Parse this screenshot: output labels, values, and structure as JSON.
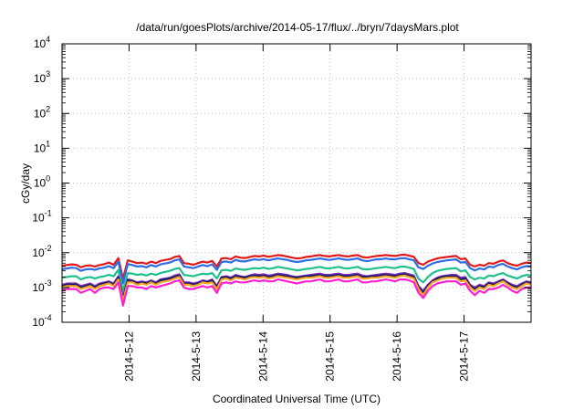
{
  "chart_data": {
    "type": "line",
    "title": "/data/run/goesPlots/archive/2014-05-17/flux/../bryn/7daysMars.plot",
    "xlabel": "Coordinated Universal Time (UTC)",
    "ylabel": "cGy/day",
    "yscale": "log",
    "ylim": [
      0.0001,
      10000
    ],
    "y_ticks": [
      {
        "base": "10",
        "exp": "-4"
      },
      {
        "base": "10",
        "exp": "-3"
      },
      {
        "base": "10",
        "exp": "-2"
      },
      {
        "base": "10",
        "exp": "-1"
      },
      {
        "base": "10",
        "exp": "0"
      },
      {
        "base": "10",
        "exp": "1"
      },
      {
        "base": "10",
        "exp": "2"
      },
      {
        "base": "10",
        "exp": "3"
      },
      {
        "base": "10",
        "exp": "4"
      }
    ],
    "x_tick_labels": [
      "2014-5-12",
      "2014-5-13",
      "2014-5-14",
      "2014-5-15",
      "2014-5-16",
      "2014-5-17"
    ],
    "xlim": [
      "2014-05-11 00:00",
      "2014-05-17 23:59"
    ],
    "grid": true,
    "legend": "none",
    "series": [
      {
        "color": "#e31a1c",
        "values": [
          0.0042,
          0.0044,
          0.0046,
          0.0045,
          0.0038,
          0.0042,
          0.0043,
          0.004,
          0.0044,
          0.0047,
          0.0052,
          0.0045,
          0.007,
          0.0018,
          0.006,
          0.0055,
          0.005,
          0.0052,
          0.0048,
          0.0055,
          0.005,
          0.0058,
          0.0062,
          0.0065,
          0.0075,
          0.008,
          0.005,
          0.0048,
          0.0045,
          0.005,
          0.0055,
          0.0052,
          0.0058,
          0.004,
          0.0068,
          0.007,
          0.0065,
          0.0078,
          0.0072,
          0.007,
          0.0075,
          0.008,
          0.0078,
          0.0082,
          0.0076,
          0.008,
          0.0085,
          0.0082,
          0.0078,
          0.0072,
          0.0068,
          0.007,
          0.0075,
          0.0078,
          0.0082,
          0.0085,
          0.008,
          0.0078,
          0.0082,
          0.0085,
          0.008,
          0.0078,
          0.0082,
          0.0085,
          0.0075,
          0.0072,
          0.0076,
          0.008,
          0.0082,
          0.0085,
          0.0082,
          0.008,
          0.0085,
          0.0088,
          0.0082,
          0.0076,
          0.005,
          0.0045,
          0.0055,
          0.0062,
          0.0068,
          0.0072,
          0.0075,
          0.0078,
          0.008,
          0.0065,
          0.0068,
          0.0045,
          0.004,
          0.0045,
          0.0042,
          0.005,
          0.0048,
          0.0055,
          0.006,
          0.005,
          0.0045,
          0.0042,
          0.0048,
          0.0052,
          0.005
        ]
      },
      {
        "color": "#2e6be6",
        "values": [
          0.0033,
          0.0035,
          0.0037,
          0.0036,
          0.003,
          0.0033,
          0.0034,
          0.0032,
          0.0035,
          0.0037,
          0.0041,
          0.0036,
          0.0055,
          0.0013,
          0.0047,
          0.0044,
          0.004,
          0.0041,
          0.0038,
          0.0044,
          0.004,
          0.0046,
          0.0049,
          0.0052,
          0.006,
          0.0064,
          0.004,
          0.0038,
          0.0036,
          0.004,
          0.0044,
          0.0041,
          0.0046,
          0.0032,
          0.0054,
          0.0056,
          0.0052,
          0.0062,
          0.0057,
          0.0056,
          0.006,
          0.0064,
          0.0062,
          0.0065,
          0.006,
          0.0064,
          0.0068,
          0.0065,
          0.0062,
          0.0057,
          0.0054,
          0.0056,
          0.006,
          0.0062,
          0.0065,
          0.0068,
          0.0064,
          0.0062,
          0.0065,
          0.0068,
          0.0064,
          0.0062,
          0.0065,
          0.0068,
          0.006,
          0.0057,
          0.006,
          0.0064,
          0.0065,
          0.0068,
          0.0065,
          0.0064,
          0.0068,
          0.007,
          0.0065,
          0.006,
          0.0038,
          0.0034,
          0.0042,
          0.0049,
          0.0054,
          0.0057,
          0.006,
          0.0062,
          0.0064,
          0.0052,
          0.0054,
          0.0036,
          0.0031,
          0.0035,
          0.0033,
          0.004,
          0.0038,
          0.0044,
          0.0048,
          0.004,
          0.0036,
          0.0033,
          0.0038,
          0.0041,
          0.004
        ]
      },
      {
        "color": "#1fbf8f",
        "values": [
          0.0019,
          0.002,
          0.0021,
          0.0021,
          0.0017,
          0.0019,
          0.002,
          0.0018,
          0.002,
          0.0021,
          0.0023,
          0.0021,
          0.0032,
          0.0008,
          0.0026,
          0.0025,
          0.0023,
          0.0024,
          0.0022,
          0.0025,
          0.0023,
          0.0026,
          0.0028,
          0.003,
          0.0034,
          0.0036,
          0.0023,
          0.0022,
          0.0021,
          0.0023,
          0.0025,
          0.0024,
          0.0026,
          0.0018,
          0.0031,
          0.0032,
          0.003,
          0.0035,
          0.0033,
          0.0032,
          0.0034,
          0.0036,
          0.0035,
          0.0037,
          0.0034,
          0.0036,
          0.0039,
          0.0037,
          0.0035,
          0.0033,
          0.0031,
          0.0032,
          0.0034,
          0.0035,
          0.0037,
          0.0039,
          0.0036,
          0.0035,
          0.0037,
          0.0039,
          0.0036,
          0.0035,
          0.0037,
          0.0039,
          0.0034,
          0.0033,
          0.0034,
          0.0036,
          0.0037,
          0.0039,
          0.0037,
          0.0036,
          0.0039,
          0.004,
          0.0037,
          0.0034,
          0.0018,
          0.0014,
          0.002,
          0.0026,
          0.003,
          0.0032,
          0.0034,
          0.0035,
          0.0036,
          0.0029,
          0.0031,
          0.002,
          0.0017,
          0.0019,
          0.0018,
          0.0022,
          0.0021,
          0.0024,
          0.0026,
          0.0022,
          0.002,
          0.0018,
          0.0021,
          0.0023,
          0.0022
        ]
      },
      {
        "color": "#7b2fbf",
        "values": [
          0.0012,
          0.0013,
          0.0013,
          0.0013,
          0.0011,
          0.0012,
          0.0013,
          0.0011,
          0.0013,
          0.0014,
          0.0015,
          0.0013,
          0.0021,
          0.0005,
          0.0017,
          0.0016,
          0.0014,
          0.0015,
          0.0014,
          0.0016,
          0.0014,
          0.0017,
          0.0018,
          0.0019,
          0.0022,
          0.0024,
          0.0014,
          0.0014,
          0.0013,
          0.0014,
          0.0016,
          0.0015,
          0.0017,
          0.0011,
          0.002,
          0.0021,
          0.0019,
          0.0023,
          0.0021,
          0.002,
          0.0022,
          0.0024,
          0.0023,
          0.0024,
          0.0022,
          0.0023,
          0.0025,
          0.0024,
          0.0023,
          0.0021,
          0.002,
          0.0021,
          0.0022,
          0.0023,
          0.0024,
          0.0025,
          0.0023,
          0.0023,
          0.0024,
          0.0025,
          0.0023,
          0.0023,
          0.0024,
          0.0025,
          0.0022,
          0.0021,
          0.0022,
          0.0023,
          0.0024,
          0.0025,
          0.0024,
          0.0023,
          0.0025,
          0.0026,
          0.0024,
          0.0022,
          0.0011,
          0.0008,
          0.0012,
          0.0016,
          0.0019,
          0.0021,
          0.0022,
          0.0023,
          0.0023,
          0.0019,
          0.002,
          0.0012,
          0.001,
          0.0012,
          0.0011,
          0.0014,
          0.0013,
          0.0015,
          0.0017,
          0.0014,
          0.0012,
          0.0011,
          0.0013,
          0.0015,
          0.0014
        ]
      },
      {
        "color": "#1a1a5e",
        "values": [
          0.0011,
          0.0012,
          0.0012,
          0.0012,
          0.001,
          0.0011,
          0.0012,
          0.001,
          0.0012,
          0.0013,
          0.0014,
          0.0012,
          0.0019,
          0.0005,
          0.0016,
          0.0015,
          0.0013,
          0.0014,
          0.0013,
          0.0015,
          0.0013,
          0.0016,
          0.0017,
          0.0018,
          0.002,
          0.0022,
          0.0013,
          0.0013,
          0.0012,
          0.0013,
          0.0015,
          0.0014,
          0.0016,
          0.001,
          0.0019,
          0.002,
          0.0018,
          0.0021,
          0.002,
          0.0019,
          0.0021,
          0.0022,
          0.0021,
          0.0022,
          0.002,
          0.0021,
          0.0023,
          0.0022,
          0.0021,
          0.002,
          0.0019,
          0.002,
          0.0021,
          0.0021,
          0.0022,
          0.0023,
          0.0021,
          0.0021,
          0.0022,
          0.0023,
          0.0021,
          0.0021,
          0.0022,
          0.0023,
          0.002,
          0.002,
          0.0021,
          0.0021,
          0.0022,
          0.0023,
          0.0022,
          0.0021,
          0.0023,
          0.0024,
          0.0022,
          0.002,
          0.001,
          0.0007,
          0.0011,
          0.0015,
          0.0018,
          0.002,
          0.0021,
          0.0021,
          0.0021,
          0.0017,
          0.0018,
          0.0011,
          0.0009,
          0.0011,
          0.001,
          0.0013,
          0.0012,
          0.0014,
          0.0016,
          0.0013,
          0.0011,
          0.001,
          0.0012,
          0.0014,
          0.0013
        ]
      },
      {
        "color": "#f5a623",
        "values": [
          0.001,
          0.0011,
          0.0011,
          0.0011,
          0.0009,
          0.001,
          0.0011,
          0.0009,
          0.0011,
          0.0012,
          0.0013,
          0.0011,
          0.0017,
          0.0004,
          0.0014,
          0.0014,
          0.0012,
          0.0013,
          0.0012,
          0.0014,
          0.0012,
          0.0014,
          0.0015,
          0.0016,
          0.0018,
          0.002,
          0.0012,
          0.0012,
          0.0011,
          0.0012,
          0.0014,
          0.0013,
          0.0014,
          0.0009,
          0.0017,
          0.0018,
          0.0016,
          0.0019,
          0.0018,
          0.0017,
          0.0019,
          0.002,
          0.0019,
          0.002,
          0.0018,
          0.0019,
          0.0021,
          0.002,
          0.0019,
          0.0018,
          0.0017,
          0.0018,
          0.0019,
          0.0019,
          0.002,
          0.0021,
          0.0019,
          0.0019,
          0.002,
          0.0021,
          0.0019,
          0.0019,
          0.002,
          0.0021,
          0.0018,
          0.0018,
          0.0019,
          0.0019,
          0.002,
          0.0021,
          0.002,
          0.0019,
          0.0021,
          0.0022,
          0.002,
          0.0018,
          0.0009,
          0.0006,
          0.001,
          0.0014,
          0.0016,
          0.0018,
          0.0019,
          0.0019,
          0.0019,
          0.0015,
          0.0016,
          0.001,
          0.0008,
          0.001,
          0.0009,
          0.0012,
          0.0011,
          0.0013,
          0.0015,
          0.0012,
          0.001,
          0.0009,
          0.0011,
          0.0013,
          0.0012
        ]
      },
      {
        "color": "#ff1fd2",
        "values": [
          0.0008,
          0.0009,
          0.0009,
          0.0009,
          0.0007,
          0.0008,
          0.0009,
          0.0007,
          0.0009,
          0.001,
          0.001,
          0.0009,
          0.0014,
          0.0003,
          0.0011,
          0.0011,
          0.001,
          0.001,
          0.0009,
          0.0011,
          0.001,
          0.0011,
          0.0012,
          0.0013,
          0.0015,
          0.0016,
          0.001,
          0.0009,
          0.0009,
          0.001,
          0.0011,
          0.001,
          0.0011,
          0.0007,
          0.0013,
          0.0014,
          0.0013,
          0.0015,
          0.0014,
          0.0014,
          0.0015,
          0.0016,
          0.0015,
          0.0016,
          0.0015,
          0.0015,
          0.0017,
          0.0016,
          0.0015,
          0.0014,
          0.0013,
          0.0014,
          0.0015,
          0.0015,
          0.0016,
          0.0017,
          0.0015,
          0.0015,
          0.0016,
          0.0017,
          0.0015,
          0.0015,
          0.0016,
          0.0017,
          0.0014,
          0.0014,
          0.0015,
          0.0015,
          0.0016,
          0.0017,
          0.0016,
          0.0015,
          0.0017,
          0.0017,
          0.0016,
          0.0014,
          0.0007,
          0.0005,
          0.0008,
          0.0011,
          0.0013,
          0.0014,
          0.0015,
          0.0015,
          0.0015,
          0.0012,
          0.0013,
          0.0008,
          0.0006,
          0.0008,
          0.0007,
          0.0009,
          0.0009,
          0.001,
          0.0012,
          0.001,
          0.0008,
          0.0007,
          0.0009,
          0.001,
          0.001
        ]
      }
    ]
  }
}
